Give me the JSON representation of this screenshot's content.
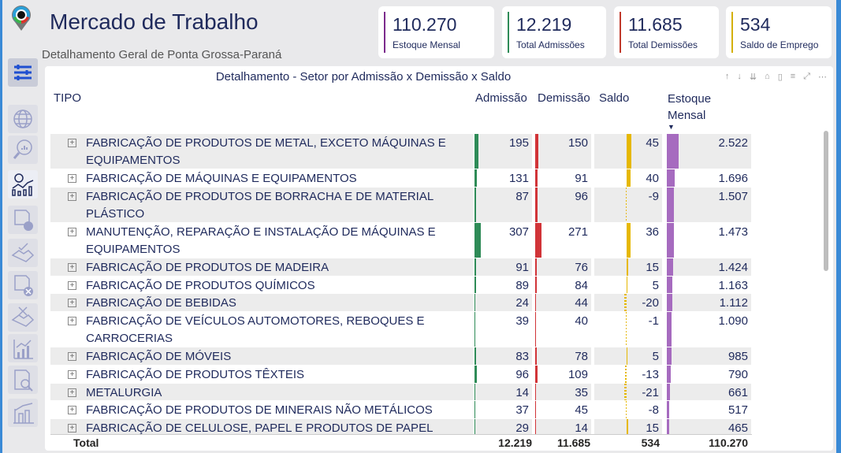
{
  "header": {
    "title": "Mercado de Trabalho",
    "subtitle": "Detalhamento Geral de Ponta Grossa-Paraná"
  },
  "cards": [
    {
      "value": "110.270",
      "label": "Estoque Mensal",
      "color": "#7b2a8c"
    },
    {
      "value": "12.219",
      "label": "Total Admissões",
      "color": "#2e8b57"
    },
    {
      "value": "11.685",
      "label": "Total Demissões",
      "color": "#c0392b"
    },
    {
      "value": "534",
      "label": "Saldo de Emprego",
      "color": "#d4b000"
    }
  ],
  "sidebar": {
    "icons": [
      "filters-icon",
      "globe-icon",
      "search-chart-icon",
      "finance-chart-icon",
      "document-check-icon",
      "handshake-check-icon",
      "document-x-icon",
      "handshake-x-icon",
      "bar-chart-up-icon",
      "document-search-icon",
      "building-chart-icon"
    ],
    "active": "finance-chart-icon"
  },
  "table": {
    "title": "Detalhamento - Setor por Admissão x Demissão x Saldo",
    "columns": {
      "tipo": "TIPO",
      "admissao": "Admissão",
      "demissao": "Demissão",
      "saldo": "Saldo",
      "estoque_1": "Estoque",
      "estoque_2": "Mensal"
    },
    "sorted_by": "Estoque Mensal",
    "sort_dir": "desc",
    "colors": {
      "admissao": "#2e8b57",
      "demissao": "#d13438",
      "saldo": "#e6b800",
      "estoque": "#a66bbf"
    },
    "rows": [
      {
        "tipo": "FABRICAÇÃO DE PRODUTOS DE METAL, EXCETO MÁQUINAS E EQUIPAMENTOS",
        "admissao": 195,
        "demissao": 150,
        "saldo": 45,
        "estoque": "2.522",
        "estoque_n": 2522
      },
      {
        "tipo": "FABRICAÇÃO DE MÁQUINAS E EQUIPAMENTOS",
        "admissao": 131,
        "demissao": 91,
        "saldo": 40,
        "estoque": "1.696",
        "estoque_n": 1696
      },
      {
        "tipo": "FABRICAÇÃO DE PRODUTOS DE BORRACHA E DE MATERIAL PLÁSTICO",
        "admissao": 87,
        "demissao": 96,
        "saldo": -9,
        "estoque": "1.507",
        "estoque_n": 1507
      },
      {
        "tipo": "MANUTENÇÃO, REPARAÇÃO E INSTALAÇÃO DE MÁQUINAS E EQUIPAMENTOS",
        "admissao": 307,
        "demissao": 271,
        "saldo": 36,
        "estoque": "1.473",
        "estoque_n": 1473
      },
      {
        "tipo": "FABRICAÇÃO DE PRODUTOS DE MADEIRA",
        "admissao": 91,
        "demissao": 76,
        "saldo": 15,
        "estoque": "1.424",
        "estoque_n": 1424
      },
      {
        "tipo": "FABRICAÇÃO DE PRODUTOS QUÍMICOS",
        "admissao": 89,
        "demissao": 84,
        "saldo": 5,
        "estoque": "1.163",
        "estoque_n": 1163
      },
      {
        "tipo": "FABRICAÇÃO DE BEBIDAS",
        "admissao": 24,
        "demissao": 44,
        "saldo": -20,
        "estoque": "1.112",
        "estoque_n": 1112
      },
      {
        "tipo": "FABRICAÇÃO DE VEÍCULOS AUTOMOTORES, REBOQUES E CARROCERIAS",
        "admissao": 39,
        "demissao": 40,
        "saldo": -1,
        "estoque": "1.090",
        "estoque_n": 1090
      },
      {
        "tipo": "FABRICAÇÃO DE MÓVEIS",
        "admissao": 83,
        "demissao": 78,
        "saldo": 5,
        "estoque": "985",
        "estoque_n": 985
      },
      {
        "tipo": "FABRICAÇÃO DE PRODUTOS TÊXTEIS",
        "admissao": 96,
        "demissao": 109,
        "saldo": -13,
        "estoque": "790",
        "estoque_n": 790
      },
      {
        "tipo": "METALURGIA",
        "admissao": 14,
        "demissao": 35,
        "saldo": -21,
        "estoque": "661",
        "estoque_n": 661
      },
      {
        "tipo": "FABRICAÇÃO DE PRODUTOS DE MINERAIS NÃO METÁLICOS",
        "admissao": 37,
        "demissao": 45,
        "saldo": -8,
        "estoque": "517",
        "estoque_n": 517
      },
      {
        "tipo": "FABRICAÇÃO DE CELULOSE, PAPEL E PRODUTOS DE PAPEL",
        "admissao": 29,
        "demissao": 14,
        "saldo": 15,
        "estoque": "465",
        "estoque_n": 465
      }
    ],
    "total": {
      "label": "Total",
      "admissao": "12.219",
      "demissao": "11.685",
      "saldo": "534",
      "estoque": "110.270"
    }
  }
}
